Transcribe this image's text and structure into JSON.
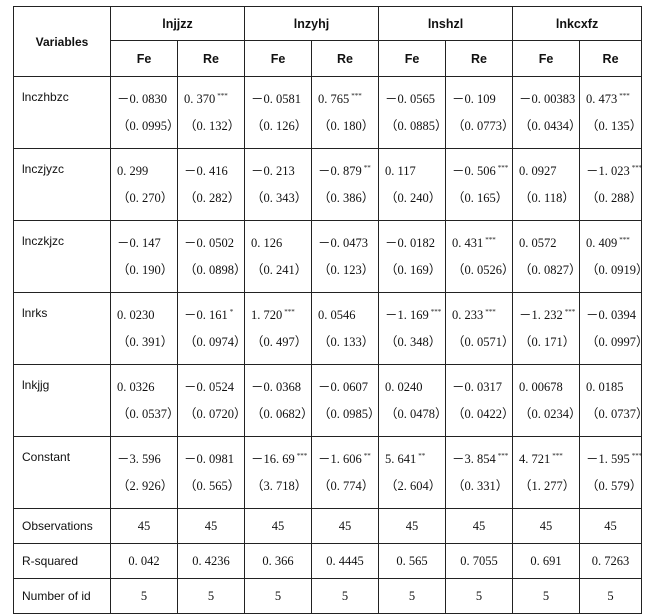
{
  "table": {
    "variables_label": "Variables",
    "groups": [
      "lnjjzz",
      "lnzyhj",
      "lnshzl",
      "lnkcxfz"
    ],
    "subheaders": [
      "Fe",
      "Re",
      "Fe",
      "Re",
      "Fe",
      "Re",
      "Fe",
      "Re"
    ],
    "rows": [
      {
        "name": "lnczhbzc",
        "cells": [
          {
            "coef": "－0. 0830",
            "stars": "",
            "se": "（0. 0995）"
          },
          {
            "coef": "0. 370",
            "stars": "***",
            "se": "（0. 132）"
          },
          {
            "coef": "－0. 0581",
            "stars": "",
            "se": "（0. 126）"
          },
          {
            "coef": "0. 765",
            "stars": "***",
            "se": "（0. 180）"
          },
          {
            "coef": "－0. 0565",
            "stars": "",
            "se": "（0. 0885）"
          },
          {
            "coef": "－0. 109",
            "stars": "",
            "se": "（0. 0773）"
          },
          {
            "coef": "－0. 00383",
            "stars": "",
            "se": "（0. 0434）"
          },
          {
            "coef": "0. 473",
            "stars": "***",
            "se": "（0. 135）"
          }
        ]
      },
      {
        "name": "lnczjyzc",
        "cells": [
          {
            "coef": "0. 299",
            "stars": "",
            "se": "（0. 270）"
          },
          {
            "coef": "－0. 416",
            "stars": "",
            "se": "（0. 282）"
          },
          {
            "coef": "－0. 213",
            "stars": "",
            "se": "（0. 343）"
          },
          {
            "coef": "－0. 879",
            "stars": "**",
            "se": "（0. 386）"
          },
          {
            "coef": "0. 117",
            "stars": "",
            "se": "（0. 240）"
          },
          {
            "coef": "－0. 506",
            "stars": "***",
            "se": "（0. 165）"
          },
          {
            "coef": "0. 0927",
            "stars": "",
            "se": "（0. 118）"
          },
          {
            "coef": "－1. 023",
            "stars": "***",
            "se": "（0. 288）"
          }
        ]
      },
      {
        "name": "lnczkjzc",
        "cells": [
          {
            "coef": "－0. 147",
            "stars": "",
            "se": "（0. 190）"
          },
          {
            "coef": "－0. 0502",
            "stars": "",
            "se": "（0. 0898）"
          },
          {
            "coef": "0. 126",
            "stars": "",
            "se": "（0. 241）"
          },
          {
            "coef": "－0. 0473",
            "stars": "",
            "se": "（0. 123）"
          },
          {
            "coef": "－0. 0182",
            "stars": "",
            "se": "（0. 169）"
          },
          {
            "coef": "0. 431",
            "stars": "***",
            "se": "（0. 0526）"
          },
          {
            "coef": "0. 0572",
            "stars": "",
            "se": "（0. 0827）"
          },
          {
            "coef": "0. 409",
            "stars": "***",
            "se": "（0. 0919）"
          }
        ]
      },
      {
        "name": "lnrks",
        "cells": [
          {
            "coef": "0. 0230",
            "stars": "",
            "se": "（0. 391）"
          },
          {
            "coef": "－0. 161",
            "stars": "*",
            "se": "（0. 0974）"
          },
          {
            "coef": "1. 720",
            "stars": "***",
            "se": "（0. 497）"
          },
          {
            "coef": "0. 0546",
            "stars": "",
            "se": "（0. 133）"
          },
          {
            "coef": "－1. 169",
            "stars": "***",
            "se": "（0. 348）"
          },
          {
            "coef": "0. 233",
            "stars": "***",
            "se": "（0. 0571）"
          },
          {
            "coef": "－1. 232",
            "stars": "***",
            "se": "（0. 171）"
          },
          {
            "coef": "－0. 0394",
            "stars": "",
            "se": "（0. 0997）"
          }
        ]
      },
      {
        "name": "lnkjjg",
        "cells": [
          {
            "coef": "0. 0326",
            "stars": "",
            "se": "（0. 0537）"
          },
          {
            "coef": "－0. 0524",
            "stars": "",
            "se": "（0. 0720）"
          },
          {
            "coef": "－0. 0368",
            "stars": "",
            "se": "（0. 0682）"
          },
          {
            "coef": "－0. 0607",
            "stars": "",
            "se": "（0. 0985）"
          },
          {
            "coef": "0. 0240",
            "stars": "",
            "se": "（0. 0478）"
          },
          {
            "coef": "－0. 0317",
            "stars": "",
            "se": "（0. 0422）"
          },
          {
            "coef": "0. 00678",
            "stars": "",
            "se": "（0. 0234）"
          },
          {
            "coef": "0. 0185",
            "stars": "",
            "se": "（0. 0737）"
          }
        ]
      },
      {
        "name": "Constant",
        "cells": [
          {
            "coef": "－3. 596",
            "stars": "",
            "se": "（2. 926）"
          },
          {
            "coef": "－0. 0981",
            "stars": "",
            "se": "（0. 565）"
          },
          {
            "coef": "－16. 69",
            "stars": "***",
            "se": "（3. 718）"
          },
          {
            "coef": "－1. 606",
            "stars": "**",
            "se": "（0. 774）"
          },
          {
            "coef": "5. 641",
            "stars": "**",
            "se": "（2. 604）"
          },
          {
            "coef": "－3. 854",
            "stars": "***",
            "se": "（0. 331）"
          },
          {
            "coef": "4. 721",
            "stars": "***",
            "se": "（1. 277）"
          },
          {
            "coef": "－1. 595",
            "stars": "***",
            "se": "（0. 579）"
          }
        ]
      }
    ],
    "stats": [
      {
        "name": "Observations",
        "values": [
          "45",
          "45",
          "45",
          "45",
          "45",
          "45",
          "45",
          "45"
        ]
      },
      {
        "name": "R-squared",
        "values": [
          "0. 042",
          "0. 4236",
          "0. 366",
          "0. 4445",
          "0. 565",
          "0. 7055",
          "0. 691",
          "0. 7263"
        ]
      },
      {
        "name": "Number of id",
        "values": [
          "5",
          "5",
          "5",
          "5",
          "5",
          "5",
          "5",
          "5"
        ]
      }
    ]
  }
}
